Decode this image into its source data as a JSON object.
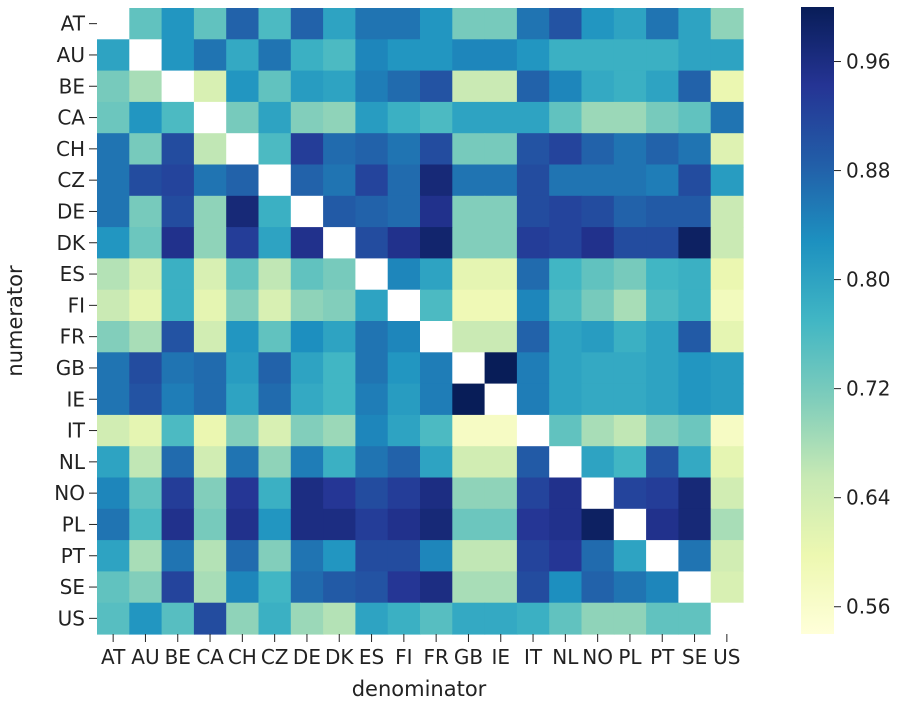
{
  "chart_data": {
    "type": "heatmap",
    "xlabel": "denominator",
    "ylabel": "numerator",
    "x_categories": [
      "AT",
      "AU",
      "BE",
      "CA",
      "CH",
      "CZ",
      "DE",
      "DK",
      "ES",
      "FI",
      "FR",
      "GB",
      "IE",
      "IT",
      "NL",
      "NO",
      "PL",
      "PT",
      "SE",
      "US"
    ],
    "y_categories": [
      "AT",
      "AU",
      "BE",
      "CA",
      "CH",
      "CZ",
      "DE",
      "DK",
      "ES",
      "FI",
      "FR",
      "GB",
      "IE",
      "IT",
      "NL",
      "NO",
      "PL",
      "PT",
      "SE",
      "US"
    ],
    "colormap": "YlGnBu",
    "colorbar": {
      "range": [
        0.54,
        1.0
      ],
      "ticks": [
        0.56,
        0.64,
        0.72,
        0.8,
        0.88,
        0.96
      ],
      "tick_labels": [
        "0.56",
        "0.64",
        "0.72",
        "0.80",
        "0.88",
        "0.96"
      ]
    },
    "values": [
      [
        null,
        0.74,
        0.82,
        0.74,
        0.88,
        0.76,
        0.88,
        0.8,
        0.86,
        0.86,
        0.82,
        0.72,
        0.72,
        0.86,
        0.9,
        0.82,
        0.8,
        0.86,
        0.8,
        0.7
      ],
      [
        0.8,
        null,
        0.82,
        0.86,
        0.79,
        0.86,
        0.78,
        0.76,
        0.84,
        0.82,
        0.82,
        0.84,
        0.84,
        0.82,
        0.78,
        0.78,
        0.78,
        0.78,
        0.8,
        0.8
      ],
      [
        0.72,
        0.68,
        null,
        0.63,
        0.82,
        0.74,
        0.81,
        0.8,
        0.85,
        0.87,
        0.9,
        0.65,
        0.65,
        0.88,
        0.84,
        0.79,
        0.78,
        0.8,
        0.88,
        0.6
      ],
      [
        0.73,
        0.82,
        0.76,
        null,
        0.72,
        0.8,
        0.71,
        0.7,
        0.81,
        0.78,
        0.76,
        0.8,
        0.8,
        0.8,
        0.74,
        0.69,
        0.69,
        0.72,
        0.74,
        0.86
      ],
      [
        0.86,
        0.72,
        0.91,
        0.66,
        null,
        0.76,
        0.93,
        0.87,
        0.88,
        0.86,
        0.91,
        0.72,
        0.72,
        0.9,
        0.92,
        0.88,
        0.86,
        0.88,
        0.86,
        0.62
      ],
      [
        0.86,
        0.91,
        0.92,
        0.86,
        0.88,
        null,
        0.88,
        0.86,
        0.92,
        0.87,
        0.97,
        0.86,
        0.86,
        0.91,
        0.86,
        0.86,
        0.86,
        0.85,
        0.91,
        0.81
      ],
      [
        0.86,
        0.72,
        0.91,
        0.7,
        0.97,
        0.78,
        null,
        0.89,
        0.88,
        0.87,
        0.95,
        0.71,
        0.71,
        0.91,
        0.92,
        0.91,
        0.88,
        0.89,
        0.89,
        0.65
      ],
      [
        0.82,
        0.73,
        0.95,
        0.7,
        0.93,
        0.8,
        0.95,
        null,
        0.91,
        0.95,
        0.98,
        0.71,
        0.71,
        0.93,
        0.92,
        0.95,
        0.91,
        0.91,
        0.99,
        0.65
      ],
      [
        0.67,
        0.63,
        0.78,
        0.63,
        0.74,
        0.66,
        0.74,
        0.72,
        null,
        0.84,
        0.8,
        0.61,
        0.61,
        0.87,
        0.77,
        0.74,
        0.72,
        0.77,
        0.78,
        0.6
      ],
      [
        0.65,
        0.61,
        0.78,
        0.61,
        0.71,
        0.63,
        0.7,
        0.71,
        0.8,
        null,
        0.76,
        0.59,
        0.59,
        0.84,
        0.76,
        0.72,
        0.68,
        0.76,
        0.78,
        0.58
      ],
      [
        0.71,
        0.68,
        0.9,
        0.64,
        0.82,
        0.74,
        0.83,
        0.8,
        0.86,
        0.84,
        null,
        0.65,
        0.65,
        0.88,
        0.8,
        0.81,
        0.78,
        0.8,
        0.89,
        0.61
      ],
      [
        0.86,
        0.91,
        0.86,
        0.87,
        0.81,
        0.88,
        0.8,
        0.77,
        0.86,
        0.82,
        0.85,
        null,
        1.0,
        0.85,
        0.8,
        0.79,
        0.79,
        0.8,
        0.82,
        0.81
      ],
      [
        0.86,
        0.9,
        0.85,
        0.87,
        0.8,
        0.87,
        0.79,
        0.77,
        0.85,
        0.81,
        0.85,
        1.0,
        null,
        0.85,
        0.8,
        0.79,
        0.79,
        0.8,
        0.82,
        0.81
      ],
      [
        0.64,
        0.61,
        0.76,
        0.6,
        0.71,
        0.63,
        0.71,
        0.69,
        0.84,
        0.8,
        0.76,
        0.57,
        0.57,
        null,
        0.74,
        0.68,
        0.66,
        0.71,
        0.73,
        0.57
      ],
      [
        0.8,
        0.66,
        0.87,
        0.64,
        0.86,
        0.7,
        0.85,
        0.78,
        0.86,
        0.88,
        0.8,
        0.64,
        0.64,
        0.89,
        null,
        0.8,
        0.77,
        0.9,
        0.79,
        0.61
      ],
      [
        0.84,
        0.74,
        0.93,
        0.71,
        0.94,
        0.78,
        0.96,
        0.94,
        0.91,
        0.93,
        0.96,
        0.7,
        0.7,
        0.92,
        0.95,
        null,
        0.92,
        0.93,
        0.97,
        0.64
      ],
      [
        0.86,
        0.76,
        0.95,
        0.72,
        0.95,
        0.82,
        0.96,
        0.96,
        0.93,
        0.95,
        0.97,
        0.73,
        0.73,
        0.94,
        0.95,
        0.99,
        null,
        0.95,
        0.97,
        0.68
      ],
      [
        0.8,
        0.68,
        0.86,
        0.67,
        0.87,
        0.71,
        0.86,
        0.82,
        0.91,
        0.91,
        0.84,
        0.66,
        0.66,
        0.92,
        0.94,
        0.87,
        0.8,
        null,
        0.86,
        0.64
      ],
      [
        0.74,
        0.71,
        0.92,
        0.68,
        0.84,
        0.77,
        0.87,
        0.89,
        0.9,
        0.94,
        0.96,
        0.68,
        0.68,
        0.91,
        0.83,
        0.88,
        0.86,
        0.84,
        null,
        0.63
      ],
      [
        0.75,
        0.82,
        0.75,
        0.91,
        0.7,
        0.78,
        0.69,
        0.67,
        0.8,
        0.78,
        0.75,
        0.79,
        0.79,
        0.78,
        0.74,
        0.7,
        0.7,
        0.74,
        0.74,
        null
      ]
    ]
  }
}
